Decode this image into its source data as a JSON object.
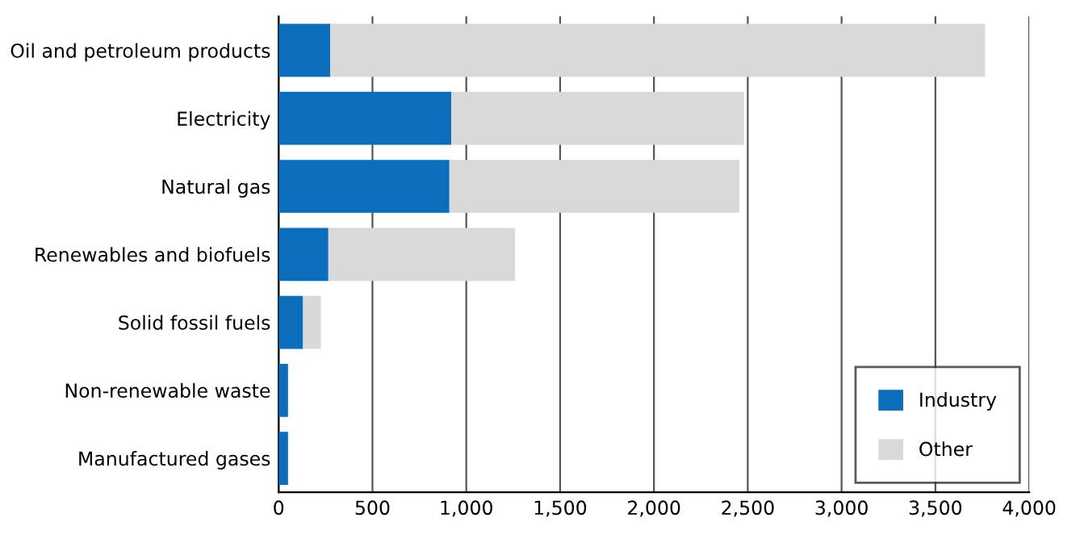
{
  "chart_data": {
    "type": "bar",
    "orientation": "horizontal",
    "stacked": true,
    "categories": [
      "Oil and petroleum products",
      "Electricity",
      "Natural gas",
      "Renewables and biofuels",
      "Solid fossil fuels",
      "Non-renewable waste",
      "Manufactured gases"
    ],
    "series": [
      {
        "name": "Industry",
        "color": "#0a6ebd",
        "values": [
          275,
          920,
          910,
          265,
          130,
          50,
          50
        ]
      },
      {
        "name": "Other",
        "color": "#d9d9d9",
        "values": [
          3490,
          1560,
          1545,
          995,
          95,
          0,
          0
        ]
      }
    ],
    "xlim": [
      0,
      4000
    ],
    "xticks": [
      0,
      {
        "value": 500,
        "label": "500"
      },
      {
        "value": 1000,
        "label": "1,000"
      },
      {
        "value": 1500,
        "label": "1,500"
      },
      {
        "value": 2000,
        "label": "2,000"
      },
      {
        "value": 2500,
        "label": "2,500"
      },
      {
        "value": 3000,
        "label": "3,000"
      },
      {
        "value": 3500,
        "label": "3,500"
      },
      {
        "value": 4000,
        "label": "4,000"
      }
    ],
    "grid": "x",
    "legend": "bottom right"
  }
}
